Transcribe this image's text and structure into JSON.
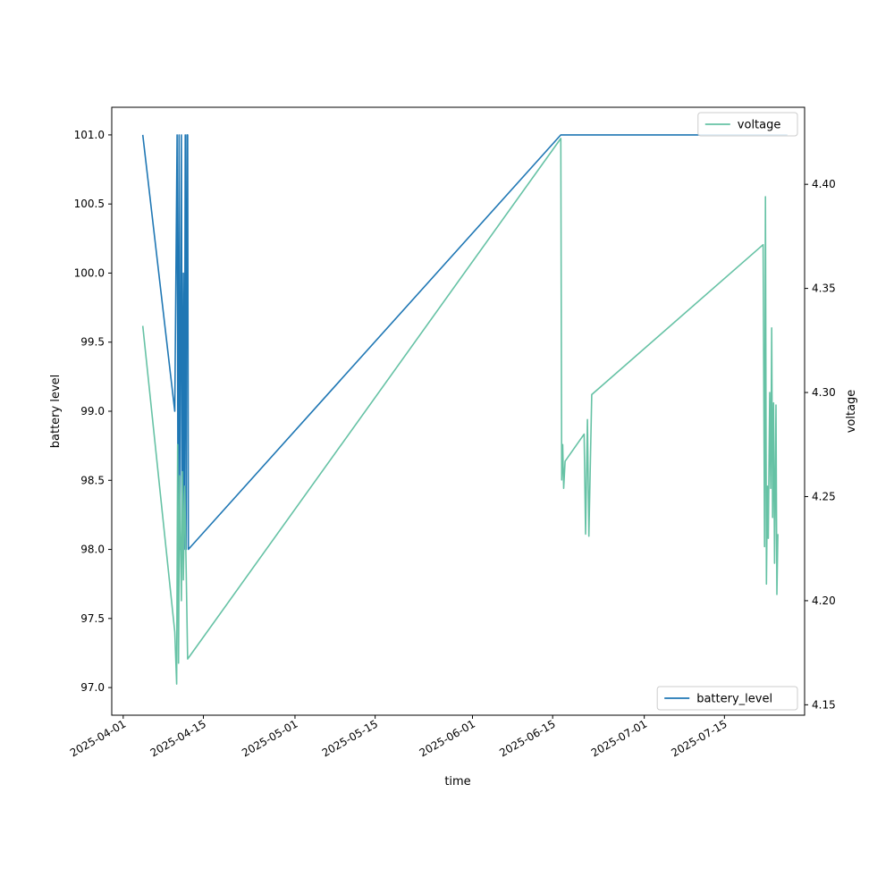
{
  "chart_data": {
    "type": "line",
    "xlabel": "time",
    "ylabel_left": "battery level",
    "ylabel_right": "voltage",
    "x_range": [
      "2025-03-30",
      "2025-07-29"
    ],
    "x_ticks": [
      "2025-04-01",
      "2025-04-15",
      "2025-05-01",
      "2025-05-15",
      "2025-06-01",
      "2025-06-15",
      "2025-07-01",
      "2025-07-15"
    ],
    "y_left": {
      "range": [
        96.8,
        101.2
      ],
      "ticks": [
        "97.0",
        "97.5",
        "98.0",
        "98.5",
        "99.0",
        "99.5",
        "100.0",
        "100.5",
        "101.0"
      ]
    },
    "y_right": {
      "range": [
        4.145,
        4.437
      ],
      "ticks": [
        "4.15",
        "4.20",
        "4.25",
        "4.30",
        "4.35",
        "4.40"
      ]
    },
    "grid": false,
    "series": [
      {
        "name": "battery_level",
        "axis": "left",
        "color": "#1f77b4",
        "legend_position": "lower-right",
        "points": [
          [
            "2025-04-04 10:00",
            101.0
          ],
          [
            "2025-04-10 00:00",
            99.0
          ],
          [
            "2025-04-10 10:00",
            101.0
          ],
          [
            "2025-04-10 14:00",
            98.0
          ],
          [
            "2025-04-10 18:00",
            101.0
          ],
          [
            "2025-04-10 22:00",
            98.0
          ],
          [
            "2025-04-11 04:00",
            101.0
          ],
          [
            "2025-04-11 08:00",
            98.0
          ],
          [
            "2025-04-11 12:00",
            100.0
          ],
          [
            "2025-04-11 16:00",
            98.0
          ],
          [
            "2025-04-11 20:00",
            101.0
          ],
          [
            "2025-04-12 00:00",
            98.0
          ],
          [
            "2025-04-12 03:00",
            101.0
          ],
          [
            "2025-04-12 06:00",
            101.0
          ],
          [
            "2025-04-12 09:00",
            98.0
          ],
          [
            "2025-06-16 10:00",
            101.0
          ],
          [
            "2025-07-26 00:00",
            101.0
          ]
        ]
      },
      {
        "name": "voltage",
        "axis": "right",
        "color": "#66c2a5",
        "legend_position": "upper-right",
        "points": [
          [
            "2025-04-04 10:00",
            4.332
          ],
          [
            "2025-04-10 00:00",
            4.185
          ],
          [
            "2025-04-10 08:00",
            4.16
          ],
          [
            "2025-04-10 12:00",
            4.275
          ],
          [
            "2025-04-10 16:00",
            4.17
          ],
          [
            "2025-04-10 20:00",
            4.26
          ],
          [
            "2025-04-11 04:00",
            4.2
          ],
          [
            "2025-04-11 08:00",
            4.262
          ],
          [
            "2025-04-11 12:00",
            4.21
          ],
          [
            "2025-04-11 18:00",
            4.255
          ],
          [
            "2025-04-12 06:00",
            4.172
          ],
          [
            "2025-06-16 10:00",
            4.422
          ],
          [
            "2025-06-16 14:00",
            4.258
          ],
          [
            "2025-06-16 18:00",
            4.275
          ],
          [
            "2025-06-16 22:00",
            4.254
          ],
          [
            "2025-06-17 04:00",
            4.267
          ],
          [
            "2025-06-20 12:00",
            4.28
          ],
          [
            "2025-06-20 18:00",
            4.232
          ],
          [
            "2025-06-21 02:00",
            4.287
          ],
          [
            "2025-06-21 08:00",
            4.231
          ],
          [
            "2025-06-21 20:00",
            4.299
          ],
          [
            "2025-07-21 18:00",
            4.371
          ],
          [
            "2025-07-22 00:00",
            4.226
          ],
          [
            "2025-07-22 04:00",
            4.394
          ],
          [
            "2025-07-22 08:00",
            4.208
          ],
          [
            "2025-07-22 12:00",
            4.255
          ],
          [
            "2025-07-22 16:00",
            4.23
          ],
          [
            "2025-07-22 22:00",
            4.3
          ],
          [
            "2025-07-23 02:00",
            4.254
          ],
          [
            "2025-07-23 06:00",
            4.331
          ],
          [
            "2025-07-23 10:00",
            4.24
          ],
          [
            "2025-07-23 14:00",
            4.295
          ],
          [
            "2025-07-23 18:00",
            4.218
          ],
          [
            "2025-07-24 00:00",
            4.294
          ],
          [
            "2025-07-24 04:00",
            4.203
          ],
          [
            "2025-07-24 08:00",
            4.232
          ]
        ]
      }
    ]
  }
}
